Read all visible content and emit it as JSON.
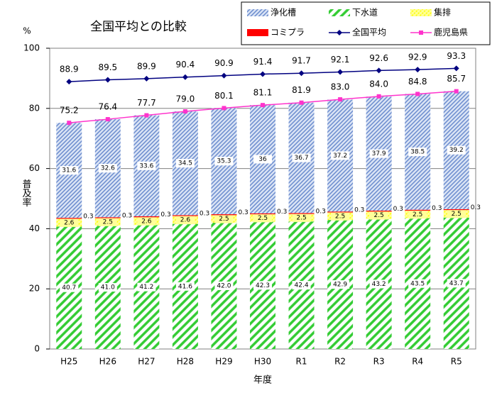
{
  "chart_data": {
    "type": "bar",
    "title": "全国平均との比較",
    "unit_label": "%",
    "y_label": "普及率",
    "x_label": "年度",
    "categories": [
      "H25",
      "H26",
      "H27",
      "H28",
      "H29",
      "H30",
      "R1",
      "R2",
      "R3",
      "R4",
      "R5"
    ],
    "series": [
      {
        "name": "下水道",
        "type": "bar",
        "color": "#33cc33",
        "values": [
          40.7,
          41.0,
          41.2,
          41.6,
          42.0,
          42.3,
          42.4,
          42.9,
          43.2,
          43.5,
          43.7
        ],
        "value_labels": [
          "40.7",
          "41.0",
          "41.2",
          "41.6",
          "42.0",
          "42.3",
          "42.4",
          "42.9",
          "43.2",
          "43.5",
          "43.7"
        ]
      },
      {
        "name": "集排",
        "type": "bar",
        "color": "#ffff00",
        "values": [
          2.6,
          2.5,
          2.6,
          2.6,
          2.5,
          2.5,
          2.5,
          2.5,
          2.5,
          2.5,
          2.5
        ]
      },
      {
        "name": "コミプラ",
        "type": "bar",
        "color": "#ff0000",
        "values": [
          0.3,
          0.3,
          0.3,
          0.3,
          0.3,
          0.3,
          0.3,
          0.3,
          0.3,
          0.3,
          0.3
        ]
      },
      {
        "name": "浄化槽",
        "type": "bar",
        "color": "#6688cc",
        "values": [
          31.6,
          32.6,
          33.6,
          34.5,
          35.3,
          36.0,
          36.7,
          37.2,
          37.9,
          38.5,
          39.2
        ]
      },
      {
        "name": "全国平均",
        "type": "line",
        "color": "#000080",
        "values": [
          88.9,
          89.5,
          89.9,
          90.4,
          90.9,
          91.4,
          91.7,
          92.1,
          92.6,
          92.9,
          93.3
        ]
      },
      {
        "name": "鹿児島県",
        "type": "line",
        "color": "#ff33cc",
        "values": [
          75.2,
          76.4,
          77.7,
          79.0,
          80.1,
          81.1,
          81.9,
          83.0,
          84.0,
          84.8,
          85.7
        ],
        "value_labels": [
          "75.2",
          "76.4",
          "77.7",
          "79.0",
          "80.1",
          "81.1",
          "81.9",
          "83.0",
          "84.0",
          "84.8",
          "85.7"
        ]
      }
    ],
    "ylim": [
      0,
      100
    ],
    "yticks": [
      0,
      20,
      40,
      60,
      80,
      100
    ],
    "grid": true
  }
}
